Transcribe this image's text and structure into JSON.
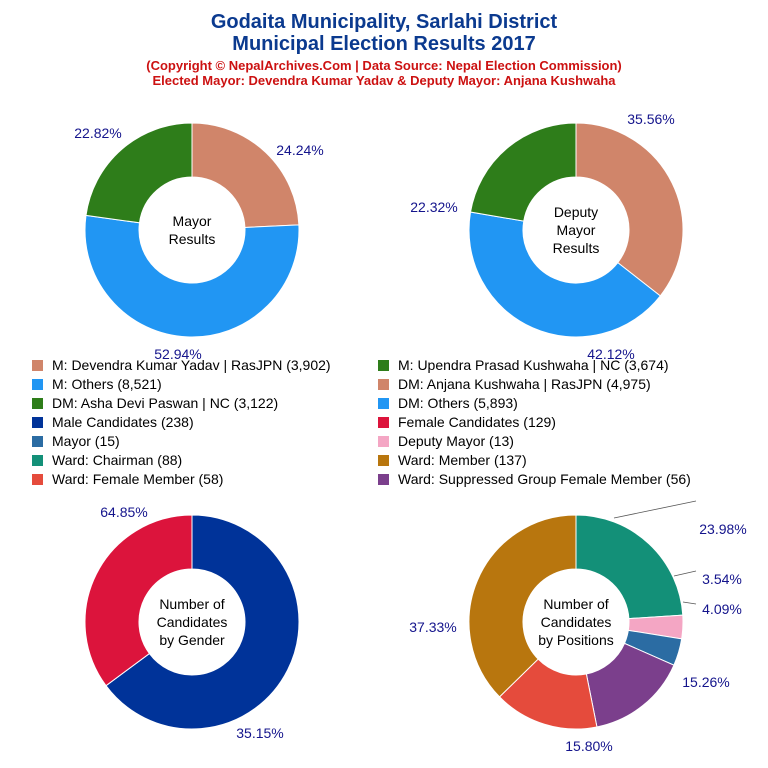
{
  "header": {
    "title_line1": "Godaita Municipality, Sarlahi District",
    "title_line2": "Municipal Election Results 2017",
    "subtitle_line1": "(Copyright © NepalArchives.Com | Data Source: Nepal Election Commission)",
    "subtitle_line2": "Elected Mayor: Devendra Kumar Yadav & Deputy Mayor: Anjana Kushwaha"
  },
  "colors": {
    "title": "#0b3a8f",
    "subtitle": "#cc1111",
    "percent_label": "#14148c"
  },
  "legend": [
    {
      "label": "M: Devendra Kumar Yadav | RasJPN (3,902)",
      "color": "#d0856a"
    },
    {
      "label": "M: Upendra Prasad Kushwaha | NC (3,674)",
      "color": "#2e7d1a"
    },
    {
      "label": "M: Others (8,521)",
      "color": "#2196f3"
    },
    {
      "label": "DM: Anjana Kushwaha | RasJPN (4,975)",
      "color": "#d0856a"
    },
    {
      "label": "DM: Asha Devi Paswan | NC (3,122)",
      "color": "#2e7d1a"
    },
    {
      "label": "DM: Others (5,893)",
      "color": "#2196f3"
    },
    {
      "label": "Male Candidates (238)",
      "color": "#003399"
    },
    {
      "label": "Female Candidates (129)",
      "color": "#dc143c"
    },
    {
      "label": "Mayor (15)",
      "color": "#2b6ca3"
    },
    {
      "label": "Deputy Mayor (13)",
      "color": "#f4a6c4"
    },
    {
      "label": "Ward: Chairman (88)",
      "color": "#139078"
    },
    {
      "label": "Ward: Member (137)",
      "color": "#b8760e"
    },
    {
      "label": "Ward: Female Member (58)",
      "color": "#e54b3c"
    },
    {
      "label": "Ward: Suppressed Group Female Member (56)",
      "color": "#7b3f8c"
    }
  ],
  "chart_data": [
    {
      "type": "pie",
      "center_label": [
        "Mayor",
        "Results"
      ],
      "slices": [
        {
          "name": "M: Devendra Kumar Yadav | RasJPN",
          "value": 3902,
          "percent_label": "24.24%",
          "color": "#d0856a"
        },
        {
          "name": "M: Others",
          "value": 8521,
          "percent_label": "52.94%",
          "color": "#2196f3"
        },
        {
          "name": "M: Upendra Prasad Kushwaha | NC",
          "value": 3674,
          "percent_label": "22.82%",
          "color": "#2e7d1a"
        }
      ]
    },
    {
      "type": "pie",
      "center_label": [
        "Deputy",
        "Mayor",
        "Results"
      ],
      "slices": [
        {
          "name": "DM: Anjana Kushwaha | RasJPN",
          "value": 4975,
          "percent_label": "35.56%",
          "color": "#d0856a"
        },
        {
          "name": "DM: Others",
          "value": 5893,
          "percent_label": "42.12%",
          "color": "#2196f3"
        },
        {
          "name": "DM: Asha Devi Paswan | NC",
          "value": 3122,
          "percent_label": "22.32%",
          "color": "#2e7d1a"
        }
      ]
    },
    {
      "type": "pie",
      "center_label": [
        "Number of",
        "Candidates",
        "by Gender"
      ],
      "slices": [
        {
          "name": "Male Candidates",
          "value": 238,
          "percent_label": "64.85%",
          "color": "#003399"
        },
        {
          "name": "Female Candidates",
          "value": 129,
          "percent_label": "35.15%",
          "color": "#dc143c"
        }
      ]
    },
    {
      "type": "pie",
      "center_label": [
        "Number of",
        "Candidates",
        "by Positions"
      ],
      "slices": [
        {
          "name": "Ward: Chairman",
          "value": 88,
          "percent_label": "23.98%",
          "color": "#139078"
        },
        {
          "name": "Deputy Mayor",
          "value": 13,
          "percent_label": "3.54%",
          "color": "#f4a6c4"
        },
        {
          "name": "Mayor",
          "value": 15,
          "percent_label": "4.09%",
          "color": "#2b6ca3"
        },
        {
          "name": "Ward: Suppressed Group Female Member",
          "value": 56,
          "percent_label": "15.26%",
          "color": "#7b3f8c"
        },
        {
          "name": "Ward: Female Member",
          "value": 58,
          "percent_label": "15.80%",
          "color": "#e54b3c"
        },
        {
          "name": "Ward: Member",
          "value": 137,
          "percent_label": "37.33%",
          "color": "#b8760e"
        }
      ]
    }
  ]
}
